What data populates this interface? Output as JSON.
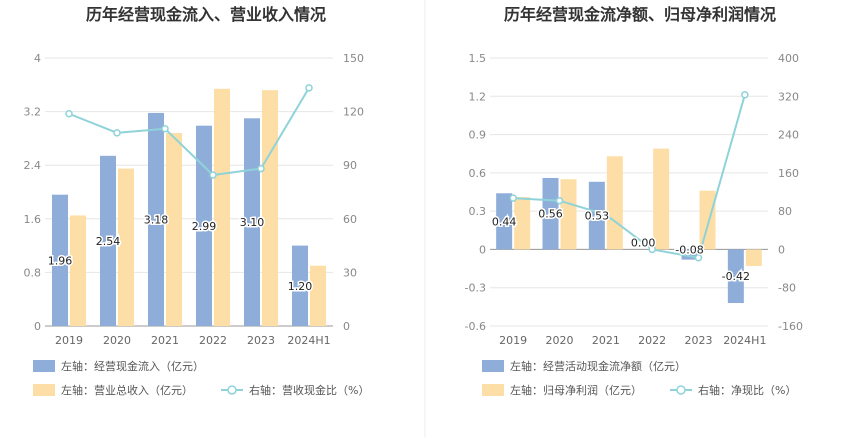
{
  "colors": {
    "bar_left": "#8fadd9",
    "bar_right": "#fddea6",
    "line": "#8fd3d9",
    "grid": "#e6e6e6",
    "axis": "#cccccc"
  },
  "chart_data": [
    {
      "type": "bar+line",
      "title": "历年经营现金流入、营业收入情况",
      "categories": [
        "2019",
        "2020",
        "2021",
        "2022",
        "2023",
        "2024H1"
      ],
      "left_axis": {
        "min": 0,
        "max": 4,
        "ticks": [
          "0",
          "0.8",
          "1.6",
          "2.4",
          "3.2",
          "4"
        ]
      },
      "right_axis": {
        "min": 0,
        "max": 150,
        "ticks": [
          "0",
          "30",
          "60",
          "90",
          "120",
          "150"
        ]
      },
      "series": [
        {
          "name": "左轴：经营现金流入（亿元）",
          "type": "bar",
          "axis": "left",
          "values": [
            1.96,
            2.54,
            3.18,
            2.99,
            3.1,
            1.2
          ],
          "labels": [
            "1.96",
            "2.54",
            "3.18",
            "2.99",
            "3.10",
            "1.20"
          ],
          "color": "#8fadd9"
        },
        {
          "name": "左轴：营业总收入（亿元）",
          "type": "bar",
          "axis": "left",
          "values": [
            1.65,
            2.35,
            2.88,
            3.54,
            3.52,
            0.9
          ],
          "color": "#fddea6"
        },
        {
          "name": "右轴：营收现金比（%）",
          "type": "line",
          "axis": "right",
          "values": [
            118.8,
            108.1,
            110.4,
            84.5,
            88.1,
            133.3
          ],
          "color": "#8fd3d9"
        }
      ]
    },
    {
      "type": "bar+line",
      "title": "历年经营现金流净额、归母净利润情况",
      "categories": [
        "2019",
        "2020",
        "2021",
        "2022",
        "2023",
        "2024H1"
      ],
      "left_axis": {
        "min": -0.6,
        "max": 1.5,
        "ticks": [
          "-0.6",
          "-0.3",
          "0",
          "0.3",
          "0.6",
          "0.9",
          "1.2",
          "1.5"
        ]
      },
      "right_axis": {
        "min": -160,
        "max": 400,
        "ticks": [
          "-160",
          "-80",
          "0",
          "80",
          "160",
          "240",
          "320",
          "400"
        ]
      },
      "series": [
        {
          "name": "左轴：经营活动现金流净额（亿元）",
          "type": "bar",
          "axis": "left",
          "values": [
            0.44,
            0.56,
            0.53,
            0.0,
            -0.08,
            -0.42
          ],
          "labels": [
            "0.44",
            "0.56",
            "0.53",
            "0.00",
            "-0.08",
            "-0.42"
          ],
          "color": "#8fadd9"
        },
        {
          "name": "左轴：归母净利润（亿元）",
          "type": "bar",
          "axis": "left",
          "values": [
            0.41,
            0.55,
            0.73,
            0.79,
            0.46,
            -0.13
          ],
          "color": "#fddea6"
        },
        {
          "name": "右轴：净现比（%）",
          "type": "line",
          "axis": "right",
          "values": [
            107.3,
            101.8,
            72.6,
            0.0,
            -17.4,
            323.1
          ],
          "color": "#8fd3d9"
        }
      ]
    }
  ]
}
